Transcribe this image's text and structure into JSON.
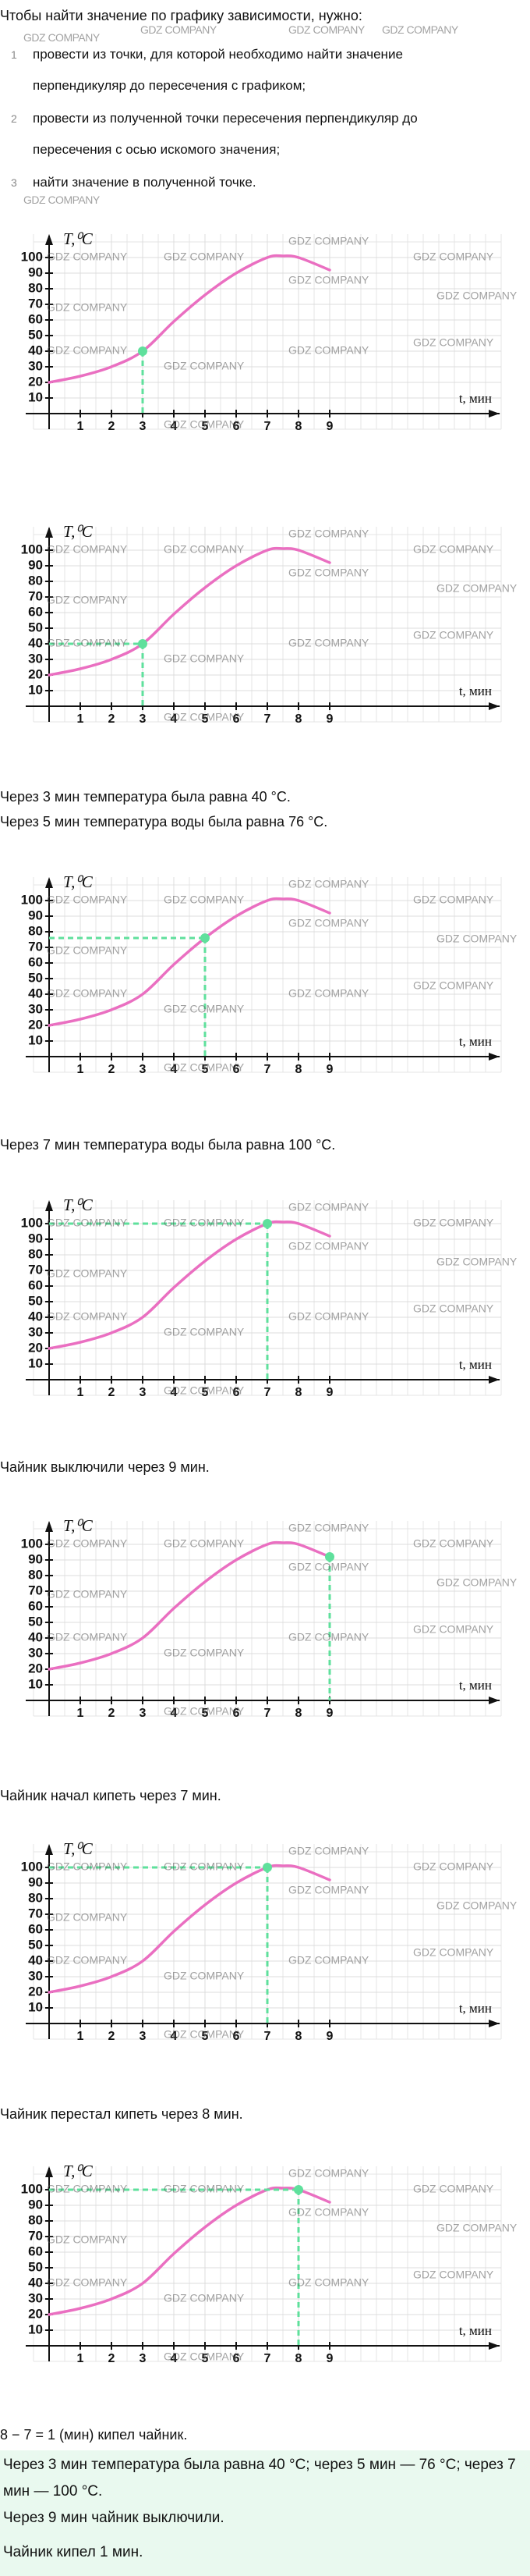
{
  "intro": "Чтобы найти значение по графику зависимости, нужно:",
  "steps": [
    {
      "number": "1",
      "text": "провести из точки, для которой необходимо найти значение перпендикуляр до пересечения с графиком;"
    },
    {
      "number": "2",
      "text": "провести из полученной точки пересечения перпендикуляр до пересечения с осью искомого значения;"
    },
    {
      "number": "3",
      "text": "найти значение в полученной точке."
    }
  ],
  "watermark": "GDZ COMPANY",
  "notes": [
    "Через 3 мин температура была равна 40 °C.",
    "Через 5 мин температура воды была равна 76 °C.",
    "Через 7 мин температура воды была равна 100 °C.",
    "Чайник выключили через 9 мин.",
    "Чайник начал кипеть через 7 мин.",
    "Чайник перестал кипеть через 8 мин.",
    "8 − 7 = 1 (мин) кипел чайник."
  ],
  "answer": [
    "Через 3 мин температура была равна 40 °C; через 5 мин — 76 °C; через 7 мин — 100 °C.",
    "Через 9 мин чайник выключили.",
    "Чайник кипел 1 мин."
  ],
  "chart_data": [
    {
      "type": "line",
      "y_label": "T,⁰C",
      "x_label": "t, мин",
      "x": [
        0,
        1,
        2,
        3,
        4,
        5,
        6,
        7,
        7.5,
        8,
        9
      ],
      "series": [
        {
          "color": "#ea6fc1",
          "values": [
            20,
            24,
            30,
            40,
            59,
            76,
            90,
            100,
            101,
            100,
            92
          ]
        }
      ],
      "xlim": [
        -0.5,
        14.5
      ],
      "ylim": [
        -10,
        115
      ],
      "xticks": [
        1,
        2,
        3,
        4,
        5,
        6,
        7,
        8,
        9
      ],
      "yticks": [
        10,
        20,
        30,
        40,
        50,
        60,
        70,
        80,
        90,
        100
      ],
      "grid": true,
      "marker": {
        "x": 3,
        "y": 40,
        "color": "#5fe09c",
        "guides": [
          "vertical"
        ]
      }
    },
    {
      "type": "line",
      "y_label": "T,⁰C",
      "x_label": "t, мин",
      "x": [
        0,
        1,
        2,
        3,
        4,
        5,
        6,
        7,
        7.5,
        8,
        9
      ],
      "series": [
        {
          "color": "#ea6fc1",
          "values": [
            20,
            24,
            30,
            40,
            59,
            76,
            90,
            100,
            101,
            100,
            92
          ]
        }
      ],
      "xlim": [
        -0.5,
        14.5
      ],
      "ylim": [
        -10,
        115
      ],
      "xticks": [
        1,
        2,
        3,
        4,
        5,
        6,
        7,
        8,
        9
      ],
      "yticks": [
        10,
        20,
        30,
        40,
        50,
        60,
        70,
        80,
        90,
        100
      ],
      "grid": true,
      "marker": {
        "x": 3,
        "y": 40,
        "color": "#5fe09c",
        "guides": [
          "vertical",
          "horizontal"
        ]
      }
    },
    {
      "type": "line",
      "y_label": "T,⁰C",
      "x_label": "t, мин",
      "x": [
        0,
        1,
        2,
        3,
        4,
        5,
        6,
        7,
        7.5,
        8,
        9
      ],
      "series": [
        {
          "color": "#ea6fc1",
          "values": [
            20,
            24,
            30,
            40,
            59,
            76,
            90,
            100,
            101,
            100,
            92
          ]
        }
      ],
      "xlim": [
        -0.5,
        14.5
      ],
      "ylim": [
        -10,
        115
      ],
      "xticks": [
        1,
        2,
        3,
        4,
        5,
        6,
        7,
        8,
        9
      ],
      "yticks": [
        10,
        20,
        30,
        40,
        50,
        60,
        70,
        80,
        90,
        100
      ],
      "grid": true,
      "marker": {
        "x": 5,
        "y": 76,
        "color": "#5fe09c",
        "guides": [
          "vertical",
          "horizontal"
        ]
      }
    },
    {
      "type": "line",
      "y_label": "T,⁰C",
      "x_label": "t, мин",
      "x": [
        0,
        1,
        2,
        3,
        4,
        5,
        6,
        7,
        7.5,
        8,
        9
      ],
      "series": [
        {
          "color": "#ea6fc1",
          "values": [
            20,
            24,
            30,
            40,
            59,
            76,
            90,
            100,
            101,
            100,
            92
          ]
        }
      ],
      "xlim": [
        -0.5,
        14.5
      ],
      "ylim": [
        -10,
        115
      ],
      "xticks": [
        1,
        2,
        3,
        4,
        5,
        6,
        7,
        8,
        9
      ],
      "yticks": [
        10,
        20,
        30,
        40,
        50,
        60,
        70,
        80,
        90,
        100
      ],
      "grid": true,
      "marker": {
        "x": 7,
        "y": 100,
        "color": "#5fe09c",
        "guides": [
          "vertical",
          "horizontal"
        ]
      }
    },
    {
      "type": "line",
      "y_label": "T,⁰C",
      "x_label": "t, мин",
      "x": [
        0,
        1,
        2,
        3,
        4,
        5,
        6,
        7,
        7.5,
        8,
        9
      ],
      "series": [
        {
          "color": "#ea6fc1",
          "values": [
            20,
            24,
            30,
            40,
            59,
            76,
            90,
            100,
            101,
            100,
            92
          ]
        }
      ],
      "xlim": [
        -0.5,
        14.5
      ],
      "ylim": [
        -10,
        115
      ],
      "xticks": [
        1,
        2,
        3,
        4,
        5,
        6,
        7,
        8,
        9
      ],
      "yticks": [
        10,
        20,
        30,
        40,
        50,
        60,
        70,
        80,
        90,
        100
      ],
      "grid": true,
      "marker": {
        "x": 9,
        "y": 92,
        "color": "#5fe09c",
        "guides": [
          "vertical"
        ]
      }
    },
    {
      "type": "line",
      "y_label": "T,⁰C",
      "x_label": "t, мин",
      "x": [
        0,
        1,
        2,
        3,
        4,
        5,
        6,
        7,
        7.5,
        8,
        9
      ],
      "series": [
        {
          "color": "#ea6fc1",
          "values": [
            20,
            24,
            30,
            40,
            59,
            76,
            90,
            100,
            101,
            100,
            92
          ]
        }
      ],
      "xlim": [
        -0.5,
        14.5
      ],
      "ylim": [
        -10,
        115
      ],
      "xticks": [
        1,
        2,
        3,
        4,
        5,
        6,
        7,
        8,
        9
      ],
      "yticks": [
        10,
        20,
        30,
        40,
        50,
        60,
        70,
        80,
        90,
        100
      ],
      "grid": true,
      "marker": {
        "x": 7,
        "y": 100,
        "color": "#5fe09c",
        "guides": [
          "vertical",
          "horizontal"
        ]
      }
    },
    {
      "type": "line",
      "y_label": "T,⁰C",
      "x_label": "t, мин",
      "x": [
        0,
        1,
        2,
        3,
        4,
        5,
        6,
        7,
        7.5,
        8,
        9
      ],
      "series": [
        {
          "color": "#ea6fc1",
          "values": [
            20,
            24,
            30,
            40,
            59,
            76,
            90,
            100,
            101,
            100,
            92
          ]
        }
      ],
      "xlim": [
        -0.5,
        14.5
      ],
      "ylim": [
        -10,
        115
      ],
      "xticks": [
        1,
        2,
        3,
        4,
        5,
        6,
        7,
        8,
        9
      ],
      "yticks": [
        10,
        20,
        30,
        40,
        50,
        60,
        70,
        80,
        90,
        100
      ],
      "grid": true,
      "marker": {
        "x": 8,
        "y": 100,
        "color": "#5fe09c",
        "guides": [
          "vertical",
          "horizontal"
        ]
      }
    }
  ]
}
